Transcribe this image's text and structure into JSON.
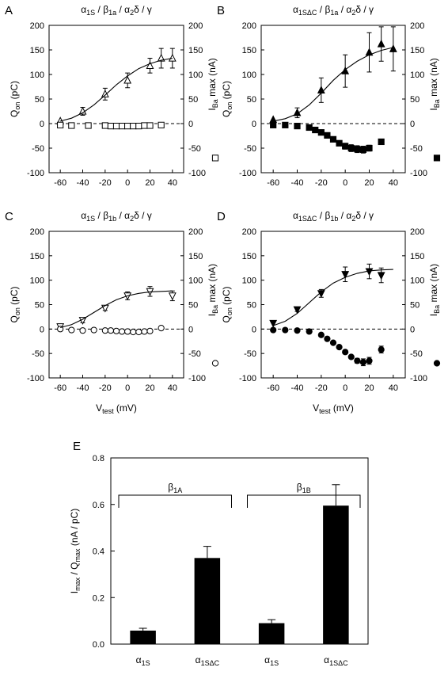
{
  "chart_data": [
    {
      "type": "scatter",
      "label": "A",
      "title": [
        "α",
        "1S",
        " / β",
        "1a",
        " / α",
        "2",
        "δ / γ"
      ],
      "ylabel": [
        "Q",
        "on",
        " (pC)"
      ],
      "y2label": [
        "I",
        "Ba",
        " max (nA)"
      ],
      "xlim": [
        -70,
        50
      ],
      "xticks": [
        -60,
        -40,
        -20,
        0,
        20,
        40
      ],
      "ylim": [
        -100,
        200
      ],
      "yticks": [
        -100,
        -50,
        0,
        50,
        100,
        150,
        200
      ],
      "y2lim": [
        -100,
        200
      ],
      "y2ticks": [
        -100,
        -50,
        0,
        50,
        100,
        150,
        200
      ],
      "series": [
        {
          "marker": "triangle-up-open",
          "x": [
            -60,
            -40,
            -20,
            0,
            20,
            30,
            40
          ],
          "values": [
            5,
            25,
            60,
            88,
            118,
            133,
            133
          ],
          "errors": [
            null,
            8,
            12,
            15,
            15,
            20,
            20
          ]
        },
        {
          "marker": "square-open",
          "axis": "y2",
          "x": [
            -60,
            -50,
            -35,
            -20,
            -15,
            -10,
            -5,
            0,
            5,
            10,
            15,
            20,
            30
          ],
          "values": [
            -3,
            -4,
            -4,
            -4,
            -5,
            -5,
            -5,
            -5,
            -5,
            -5,
            -4,
            -4,
            -3
          ]
        },
        {
          "marker": "none",
          "x": [
            -60,
            -50,
            -40,
            -30,
            -20,
            -10,
            0,
            10,
            20,
            30,
            40
          ],
          "values": [
            5,
            11,
            22,
            38,
            58,
            79,
            97,
            112,
            122,
            129,
            133
          ]
        }
      ]
    },
    {
      "type": "scatter",
      "label": "B",
      "title": [
        "α",
        "1SΔC",
        " / β",
        "1a",
        " / α",
        "2",
        "δ / γ"
      ],
      "ylabel": [
        "Q",
        "on",
        " (pC)"
      ],
      "y2label": [
        "I",
        "Ba",
        " max (nA)"
      ],
      "xlim": [
        -70,
        50
      ],
      "xticks": [
        -60,
        -40,
        -20,
        0,
        20,
        40
      ],
      "ylim": [
        -100,
        200
      ],
      "yticks": [
        -100,
        -50,
        0,
        50,
        100,
        150,
        200
      ],
      "y2lim": [
        -100,
        200
      ],
      "y2ticks": [
        -100,
        -50,
        0,
        50,
        100,
        150,
        200
      ],
      "series": [
        {
          "marker": "triangle-up",
          "x": [
            -60,
            -40,
            -20,
            0,
            20,
            30,
            40
          ],
          "values": [
            8,
            22,
            68,
            107,
            145,
            162,
            152
          ],
          "errors": [
            null,
            10,
            25,
            33,
            40,
            35,
            45
          ]
        },
        {
          "marker": "square",
          "axis": "y2",
          "x": [
            -60,
            -50,
            -40,
            -30,
            -25,
            -20,
            -15,
            -10,
            -5,
            0,
            5,
            10,
            15,
            20,
            30
          ],
          "values": [
            -3,
            -3,
            -5,
            -8,
            -13,
            -18,
            -24,
            -32,
            -40,
            -46,
            -50,
            -52,
            -53,
            -50,
            -37
          ],
          "errors": [
            null,
            null,
            null,
            null,
            null,
            null,
            null,
            null,
            null,
            6,
            7,
            7,
            7,
            6,
            null
          ]
        },
        {
          "marker": "none",
          "x": [
            -60,
            -50,
            -40,
            -30,
            -20,
            -10,
            0,
            10,
            20,
            30,
            40
          ],
          "values": [
            5,
            10,
            20,
            38,
            62,
            88,
            110,
            127,
            140,
            149,
            155
          ]
        }
      ]
    },
    {
      "type": "scatter",
      "label": "C",
      "title": [
        "α",
        "1S",
        " / β",
        "1b",
        " / α",
        "2",
        "δ / γ"
      ],
      "ylabel": [
        "Q",
        "on",
        " (pC)"
      ],
      "y2label": [
        "I",
        "Ba",
        " max (nA)"
      ],
      "xlabel": [
        "V",
        "test",
        "  (mV)"
      ],
      "xlim": [
        -70,
        50
      ],
      "xticks": [
        -60,
        -40,
        -20,
        0,
        20,
        40
      ],
      "ylim": [
        -100,
        200
      ],
      "yticks": [
        -100,
        -50,
        0,
        50,
        100,
        150,
        200
      ],
      "y2lim": [
        -100,
        200
      ],
      "y2ticks": [
        -100,
        -50,
        0,
        50,
        100,
        150,
        200
      ],
      "series": [
        {
          "marker": "triangle-down-open",
          "x": [
            -60,
            -40,
            -20,
            0,
            20,
            40
          ],
          "values": [
            5,
            18,
            43,
            68,
            77,
            68
          ],
          "errors": [
            4,
            5,
            5,
            8,
            10,
            10
          ]
        },
        {
          "marker": "circle-open",
          "axis": "y2",
          "x": [
            -60,
            -50,
            -40,
            -30,
            -20,
            -15,
            -10,
            -5,
            0,
            5,
            10,
            15,
            20,
            30
          ],
          "values": [
            0,
            -2,
            -3,
            -2,
            -3,
            -3,
            -4,
            -5,
            -5,
            -6,
            -6,
            -5,
            -4,
            2
          ]
        },
        {
          "marker": "none",
          "x": [
            -60,
            -50,
            -40,
            -30,
            -20,
            -10,
            0,
            10,
            20,
            30,
            40
          ],
          "values": [
            3,
            9,
            20,
            34,
            48,
            60,
            68,
            73,
            76,
            77,
            78
          ]
        }
      ]
    },
    {
      "type": "scatter",
      "label": "D",
      "title": [
        "α",
        "1SΔC",
        " / β",
        "1b",
        " / α",
        "2",
        "δ / γ"
      ],
      "ylabel": [
        "Q",
        "on",
        " (pC)"
      ],
      "y2label": [
        "I",
        "Ba",
        " max (nA)"
      ],
      "xlabel": [
        "V",
        "test",
        "  (mV)"
      ],
      "xlim": [
        -70,
        50
      ],
      "xticks": [
        -60,
        -40,
        -20,
        0,
        20,
        40
      ],
      "ylim": [
        -100,
        200
      ],
      "yticks": [
        -100,
        -50,
        0,
        50,
        100,
        150,
        200
      ],
      "y2lim": [
        -100,
        200
      ],
      "y2ticks": [
        -100,
        -50,
        0,
        50,
        100,
        150,
        200
      ],
      "series": [
        {
          "marker": "triangle-down",
          "x": [
            -60,
            -40,
            -20,
            0,
            20,
            30
          ],
          "values": [
            12,
            40,
            73,
            112,
            118,
            110
          ],
          "errors": [
            null,
            4,
            8,
            15,
            15,
            15
          ]
        },
        {
          "marker": "circle",
          "axis": "y2",
          "x": [
            -60,
            -50,
            -40,
            -30,
            -20,
            -15,
            -10,
            -5,
            0,
            5,
            10,
            15,
            20,
            30
          ],
          "values": [
            -2,
            -2,
            -3,
            -5,
            -12,
            -20,
            -28,
            -37,
            -47,
            -57,
            -65,
            -68,
            -65,
            -42
          ],
          "errors": [
            null,
            null,
            null,
            null,
            null,
            null,
            null,
            null,
            null,
            null,
            5,
            7,
            7,
            7
          ]
        },
        {
          "marker": "none",
          "x": [
            -60,
            -50,
            -40,
            -30,
            -20,
            -10,
            0,
            10,
            20,
            30,
            40
          ],
          "values": [
            7,
            16,
            32,
            54,
            76,
            94,
            106,
            114,
            119,
            121,
            122
          ]
        }
      ]
    },
    {
      "type": "bar",
      "label": "E",
      "ylabel": [
        "I",
        "max",
        " / Q",
        "max",
        "  (nA / pC)"
      ],
      "categories": [
        [
          "α",
          "1S"
        ],
        [
          "α",
          "1SΔC"
        ],
        [
          "α",
          "1S"
        ],
        [
          "α",
          "1SΔC"
        ]
      ],
      "groups": [
        [
          "β",
          "1A"
        ],
        [
          "β",
          "1B"
        ]
      ],
      "values": [
        0.058,
        0.37,
        0.09,
        0.595
      ],
      "errors": [
        0.01,
        0.05,
        0.015,
        0.09
      ],
      "color": "#000000",
      "ylim": [
        0,
        0.8
      ],
      "yticks": [
        {
          "value": 0,
          "label": "0.0"
        },
        0.2,
        0.4,
        0.6,
        0.8
      ]
    }
  ]
}
